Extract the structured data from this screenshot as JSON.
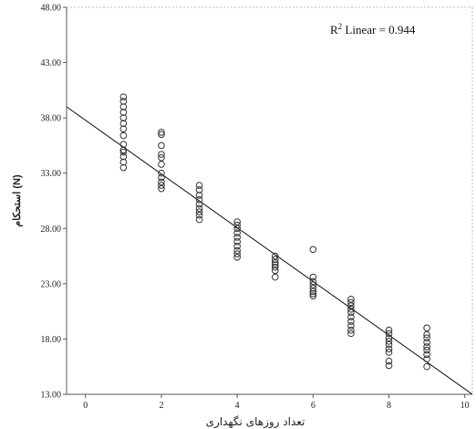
{
  "chart_data": {
    "type": "scatter",
    "xlabel": "تعداد روزهای نگهداری",
    "ylabel": "استحکام (N)",
    "xlim": [
      -0.5,
      10.2
    ],
    "ylim": [
      13,
      48
    ],
    "xticks": [
      0,
      2,
      4,
      6,
      8,
      10
    ],
    "yticks": [
      13,
      18,
      23,
      28,
      33,
      38,
      43,
      48
    ],
    "x_tick_labels": [
      "0",
      "2",
      "4",
      "6",
      "8",
      "10"
    ],
    "y_tick_labels": [
      "13.00",
      "18.00",
      "23.00",
      "28.00",
      "33.00",
      "38.00",
      "43.00",
      "48.00"
    ],
    "annotation": {
      "r2_label": "R",
      "r2_sup": "2",
      "r2_text": " Linear = 0.944"
    },
    "fit_line": {
      "x": [
        -0.5,
        10.2
      ],
      "y": [
        39.0,
        13.0
      ]
    },
    "series": [
      {
        "type": "scatter",
        "points": [
          [
            1,
            39.9
          ],
          [
            1,
            39.5
          ],
          [
            1,
            39.0
          ],
          [
            1,
            38.5
          ],
          [
            1,
            38.0
          ],
          [
            1,
            37.5
          ],
          [
            1,
            37.0
          ],
          [
            1,
            36.4
          ],
          [
            1,
            35.6
          ],
          [
            1,
            35.1
          ],
          [
            1,
            34.9
          ],
          [
            1,
            34.5
          ],
          [
            1,
            34.0
          ],
          [
            1,
            33.5
          ],
          [
            2,
            36.7
          ],
          [
            2,
            36.5
          ],
          [
            2,
            35.5
          ],
          [
            2,
            34.7
          ],
          [
            2,
            34.4
          ],
          [
            2,
            33.8
          ],
          [
            2,
            33.0
          ],
          [
            2,
            32.6
          ],
          [
            2,
            32.2
          ],
          [
            2,
            31.9
          ],
          [
            2,
            31.6
          ],
          [
            3,
            31.9
          ],
          [
            3,
            31.5
          ],
          [
            3,
            31.0
          ],
          [
            3,
            30.6
          ],
          [
            3,
            30.2
          ],
          [
            3,
            29.8
          ],
          [
            3,
            29.5
          ],
          [
            3,
            29.2
          ],
          [
            3,
            28.8
          ],
          [
            4,
            28.6
          ],
          [
            4,
            28.3
          ],
          [
            4,
            28.0
          ],
          [
            4,
            27.6
          ],
          [
            4,
            27.2
          ],
          [
            4,
            26.8
          ],
          [
            4,
            26.4
          ],
          [
            4,
            26.0
          ],
          [
            4,
            25.7
          ],
          [
            4,
            25.4
          ],
          [
            5,
            25.5
          ],
          [
            5,
            25.2
          ],
          [
            5,
            24.9
          ],
          [
            5,
            24.7
          ],
          [
            5,
            24.5
          ],
          [
            5,
            24.2
          ],
          [
            5,
            23.6
          ],
          [
            6,
            26.1
          ],
          [
            6,
            23.6
          ],
          [
            6,
            23.2
          ],
          [
            6,
            22.9
          ],
          [
            6,
            22.6
          ],
          [
            6,
            22.3
          ],
          [
            6,
            22.1
          ],
          [
            6,
            21.9
          ],
          [
            7,
            21.6
          ],
          [
            7,
            21.3
          ],
          [
            7,
            21.0
          ],
          [
            7,
            20.7
          ],
          [
            7,
            20.4
          ],
          [
            7,
            20.0
          ],
          [
            7,
            19.6
          ],
          [
            7,
            19.2
          ],
          [
            7,
            18.8
          ],
          [
            7,
            18.5
          ],
          [
            8,
            18.8
          ],
          [
            8,
            18.5
          ],
          [
            8,
            18.1
          ],
          [
            8,
            17.8
          ],
          [
            8,
            17.5
          ],
          [
            8,
            17.1
          ],
          [
            8,
            16.8
          ],
          [
            8,
            16.0
          ],
          [
            8,
            15.6
          ],
          [
            9,
            19.0
          ],
          [
            9,
            18.4
          ],
          [
            9,
            18.1
          ],
          [
            9,
            17.7
          ],
          [
            9,
            17.3
          ],
          [
            9,
            17.0
          ],
          [
            9,
            16.6
          ],
          [
            9,
            16.2
          ],
          [
            9,
            15.5
          ]
        ]
      }
    ],
    "grid": false
  }
}
